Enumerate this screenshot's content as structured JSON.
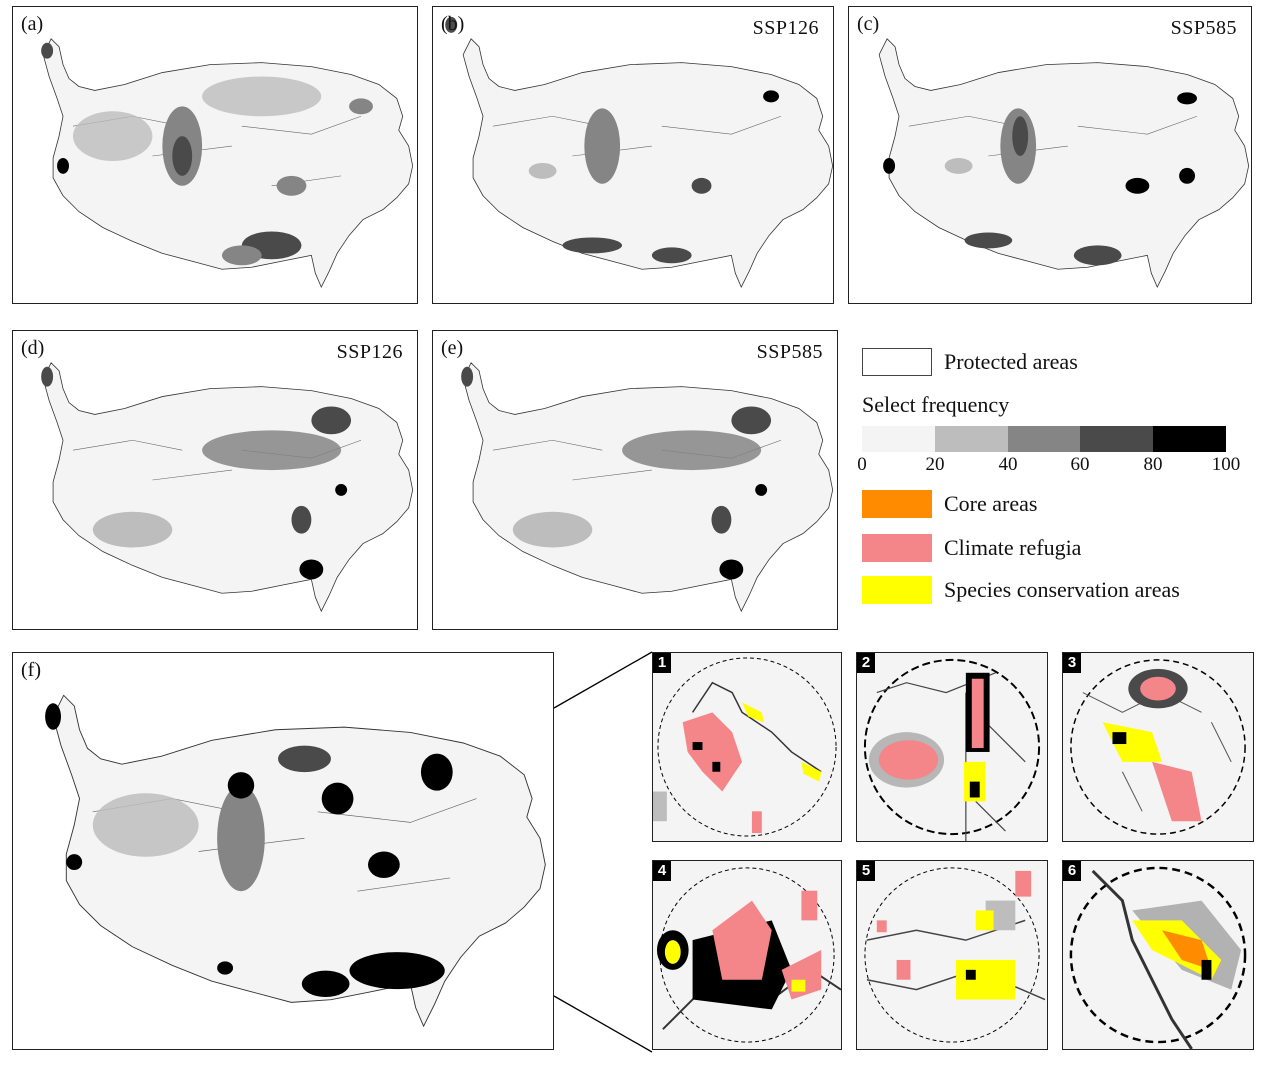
{
  "panels": {
    "a": {
      "label": "(a)",
      "scenario": ""
    },
    "b": {
      "label": "(b)",
      "scenario": "SSP126"
    },
    "c": {
      "label": "(c)",
      "scenario": "SSP585"
    },
    "d": {
      "label": "(d)",
      "scenario": "SSP126"
    },
    "e": {
      "label": "(e)",
      "scenario": "SSP585"
    },
    "f": {
      "label": "(f)",
      "scenario": ""
    }
  },
  "insets": [
    "1",
    "2",
    "3",
    "4",
    "5",
    "6"
  ],
  "legend": {
    "protected_areas": "Protected areas",
    "select_frequency": "Select frequency",
    "scale_ticks": [
      "0",
      "20",
      "40",
      "60",
      "80",
      "100"
    ],
    "scale_colors": [
      "#f4f4f4",
      "#bdbdbd",
      "#858585",
      "#4a4a4a",
      "#000000"
    ],
    "core_areas": "Core areas",
    "climate_refugia": "Climate refugia",
    "species_conservation_areas": "Species conservation areas"
  },
  "colors": {
    "core": "#ff8c00",
    "refugia": "#f4868a",
    "species": "#ffff00",
    "land": "#f4f4f4"
  }
}
